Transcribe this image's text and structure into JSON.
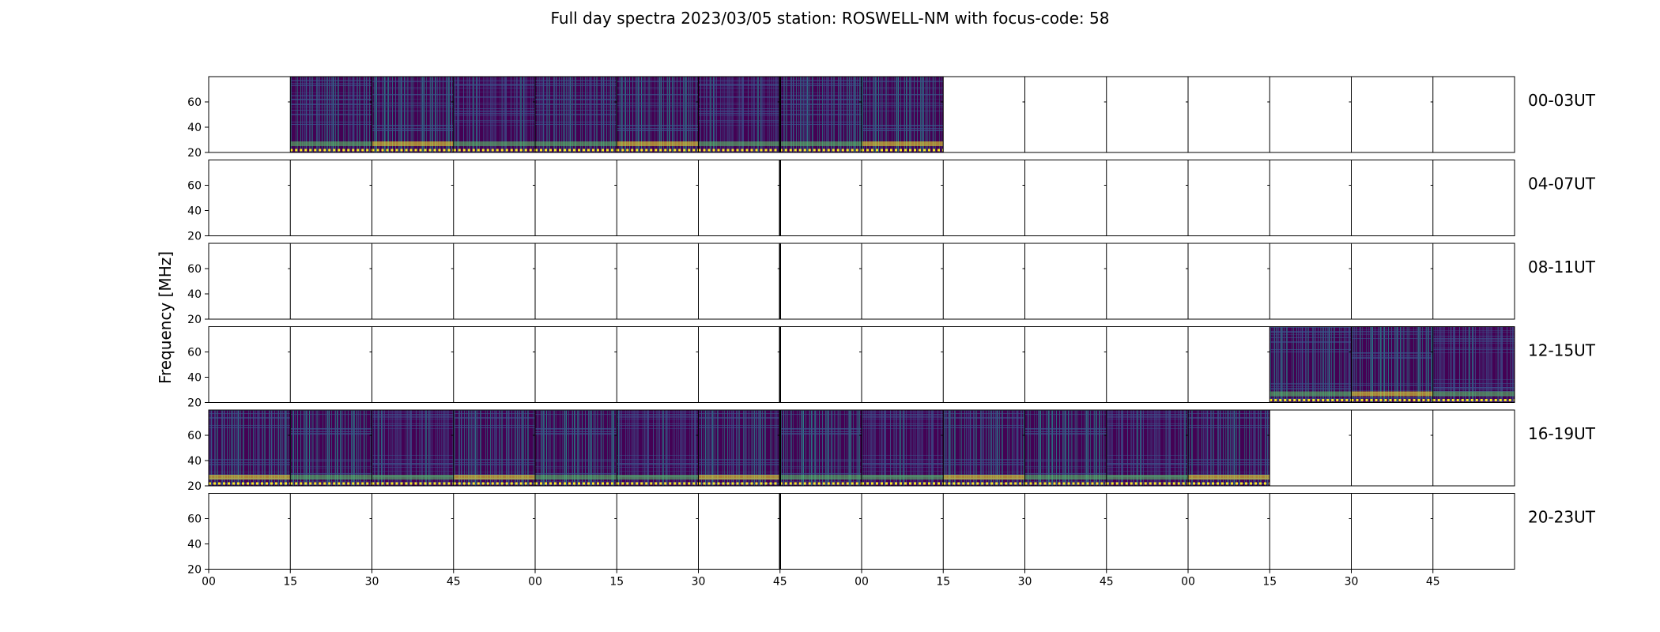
{
  "chart_data": {
    "type": "heatmap",
    "title": "Full day spectra 2023/03/05 station: ROSWELL-NM with focus-code: 58",
    "ylabel": "Frequency [MHz]",
    "xlabel": "",
    "y_ticks": [
      20,
      40,
      60
    ],
    "ylim": [
      20,
      80
    ],
    "x_tick_labels": [
      "00",
      "15",
      "30",
      "45",
      "00",
      "15",
      "30",
      "45",
      "00",
      "15",
      "30",
      "45",
      "00",
      "15",
      "30",
      "45"
    ],
    "minutes_per_segment": 15,
    "segments_per_row": 16,
    "grid": false,
    "colormap": "viridis",
    "colors": {
      "low": "#440154",
      "mid_low": "#3b528b",
      "mid": "#21918c",
      "mid_high": "#5ec962",
      "high": "#fde725"
    },
    "rows": [
      {
        "label": "00-03UT",
        "filled_segments": [
          1,
          2,
          3,
          4,
          5,
          6,
          7,
          8
        ]
      },
      {
        "label": "04-07UT",
        "filled_segments": []
      },
      {
        "label": "08-11UT",
        "filled_segments": []
      },
      {
        "label": "12-15UT",
        "filled_segments": [
          13,
          14,
          15
        ]
      },
      {
        "label": "16-19UT",
        "filled_segments": [
          0,
          1,
          2,
          3,
          4,
          5,
          6,
          7,
          8,
          9,
          10,
          11,
          12
        ]
      },
      {
        "label": "20-23UT",
        "filled_segments": []
      }
    ]
  }
}
